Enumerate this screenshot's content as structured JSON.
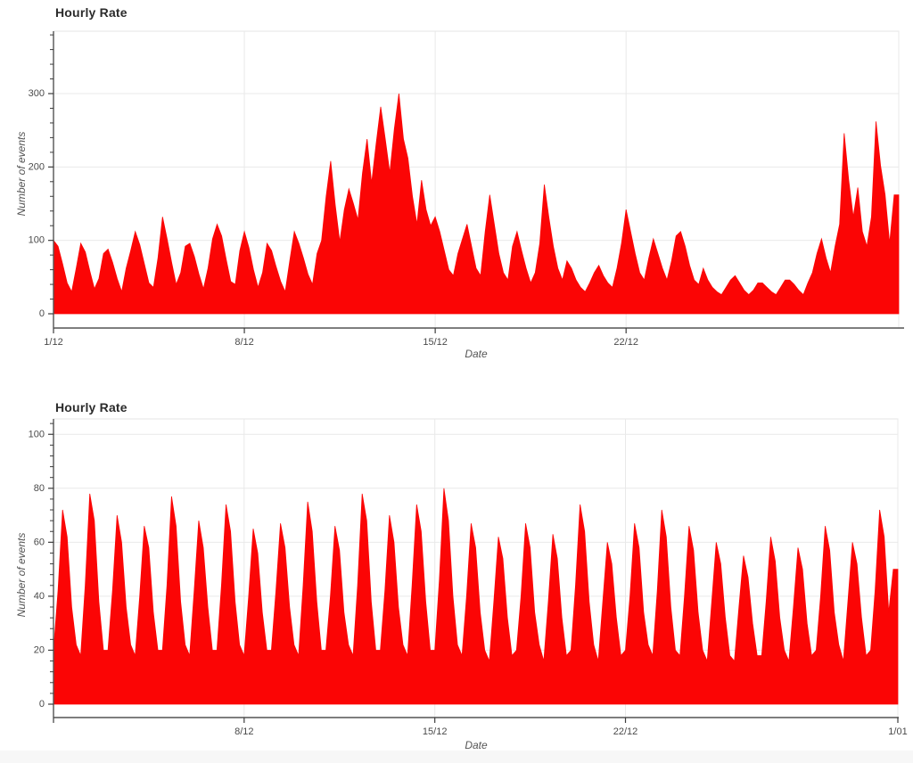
{
  "page": {
    "background": "#ffffff",
    "footer_strip_color": "#f7f7f7"
  },
  "colors": {
    "series": "#fb0505",
    "grid": "#e9e9e9",
    "outline": "#e5e5e5",
    "axis_line": "#545454",
    "tick": "#3c3c3c",
    "tick_label": "#4a4a4a",
    "title": "#2b2b2b",
    "axis_label": "#555555"
  },
  "chart_data": [
    {
      "type": "area",
      "title": "Hourly Rate",
      "xlabel": "Date",
      "ylabel": "Number of events",
      "x_unit": "hours since 1/12 00:00",
      "sample_interval_hours": 4,
      "xlim": [
        0,
        744
      ],
      "ylim": [
        0,
        385
      ],
      "y_ticks": [
        0,
        100,
        200,
        300
      ],
      "y_minor_step": 20,
      "x_ticks": [
        {
          "pos": 0,
          "label": "1/12"
        },
        {
          "pos": 168,
          "label": "8/12"
        },
        {
          "pos": 336,
          "label": "15/12"
        },
        {
          "pos": 504,
          "label": "22/12"
        }
      ],
      "grid_x": [
        168,
        336,
        504,
        744
      ],
      "edge_ticks": [],
      "grid": true,
      "legend": null,
      "values": [
        100,
        92,
        68,
        42,
        30,
        62,
        96,
        84,
        58,
        34,
        48,
        82,
        88,
        70,
        48,
        30,
        62,
        86,
        112,
        94,
        68,
        42,
        36,
        76,
        132,
        102,
        70,
        40,
        56,
        92,
        96,
        78,
        54,
        34,
        62,
        102,
        122,
        106,
        74,
        44,
        40,
        86,
        112,
        90,
        60,
        36,
        56,
        96,
        86,
        64,
        44,
        30,
        72,
        112,
        96,
        76,
        54,
        40,
        82,
        100,
        160,
        208,
        148,
        98,
        142,
        170,
        150,
        128,
        192,
        238,
        178,
        232,
        282,
        238,
        192,
        252,
        300,
        238,
        212,
        160,
        122,
        182,
        142,
        120,
        132,
        112,
        86,
        60,
        52,
        82,
        102,
        122,
        92,
        62,
        52,
        112,
        162,
        122,
        82,
        56,
        46,
        92,
        112,
        86,
        62,
        42,
        56,
        96,
        176,
        132,
        92,
        62,
        46,
        72,
        62,
        46,
        36,
        30,
        42,
        56,
        66,
        52,
        42,
        36,
        62,
        96,
        142,
        112,
        82,
        56,
        46,
        76,
        102,
        82,
        62,
        46,
        72,
        106,
        112,
        92,
        66,
        46,
        40,
        62,
        46,
        36,
        30,
        26,
        36,
        46,
        52,
        42,
        32,
        26,
        32,
        42,
        42,
        36,
        30,
        26,
        36,
        46,
        46,
        40,
        32,
        26,
        42,
        56,
        82,
        102,
        76,
        56,
        92,
        122,
        246,
        182,
        132,
        172,
        112,
        92,
        132,
        262,
        202,
        162,
        96,
        162
      ]
    },
    {
      "type": "area",
      "title": "Hourly Rate",
      "xlabel": "Date",
      "ylabel": "Number of events",
      "x_unit": "hours since 1/12 00:00",
      "sample_interval_hours": 4,
      "xlim": [
        0,
        744
      ],
      "ylim": [
        0,
        104
      ],
      "y_ticks": [
        0,
        20,
        40,
        60,
        80,
        100
      ],
      "y_minor_step": 4,
      "x_ticks": [
        {
          "pos": 168,
          "label": "8/12"
        },
        {
          "pos": 336,
          "label": "15/12"
        },
        {
          "pos": 504,
          "label": "22/12"
        },
        {
          "pos": 744,
          "label": "1/01"
        }
      ],
      "grid_x": [
        168,
        336,
        504,
        744
      ],
      "edge_ticks": [
        0
      ],
      "grid": true,
      "legend": null,
      "values": [
        20,
        42,
        72,
        62,
        36,
        22,
        18,
        44,
        78,
        68,
        38,
        20,
        20,
        42,
        70,
        60,
        36,
        22,
        18,
        40,
        66,
        58,
        34,
        20,
        20,
        44,
        77,
        66,
        38,
        22,
        18,
        42,
        68,
        58,
        36,
        20,
        20,
        44,
        74,
        64,
        38,
        22,
        18,
        40,
        65,
        56,
        34,
        20,
        20,
        42,
        67,
        58,
        36,
        22,
        18,
        44,
        75,
        64,
        38,
        20,
        20,
        40,
        66,
        57,
        34,
        22,
        18,
        44,
        78,
        68,
        38,
        20,
        20,
        42,
        70,
        60,
        36,
        22,
        18,
        44,
        74,
        64,
        38,
        20,
        20,
        46,
        80,
        68,
        40,
        22,
        18,
        40,
        67,
        58,
        34,
        20,
        16,
        38,
        62,
        54,
        32,
        18,
        20,
        40,
        67,
        58,
        34,
        22,
        16,
        38,
        63,
        54,
        32,
        18,
        20,
        44,
        74,
        64,
        38,
        22,
        16,
        38,
        60,
        52,
        32,
        18,
        20,
        40,
        67,
        58,
        34,
        22,
        18,
        42,
        72,
        62,
        36,
        20,
        18,
        40,
        66,
        57,
        34,
        20,
        16,
        38,
        60,
        52,
        32,
        18,
        16,
        36,
        55,
        47,
        30,
        18,
        18,
        38,
        62,
        53,
        32,
        20,
        16,
        36,
        58,
        50,
        30,
        18,
        20,
        40,
        66,
        57,
        34,
        22,
        16,
        38,
        60,
        52,
        32,
        18,
        20,
        42,
        72,
        62,
        34,
        50
      ]
    }
  ]
}
